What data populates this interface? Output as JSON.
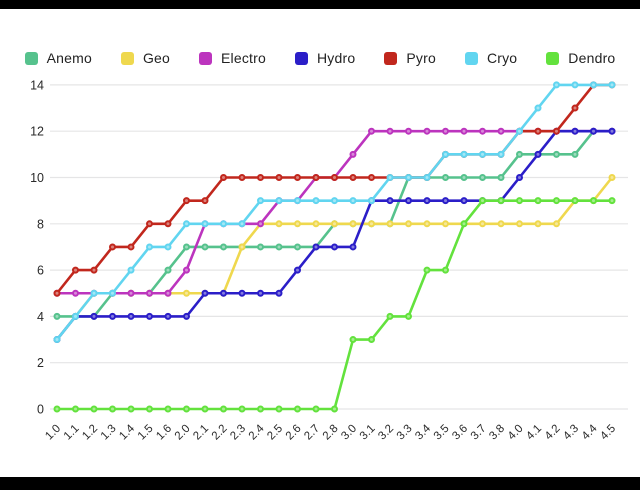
{
  "frame": {
    "letterbox_color": "#000000",
    "panel_color": "#ffffff",
    "gridline_color": "#e5e5e6"
  },
  "chart_data": {
    "type": "line",
    "title": "",
    "xlabel": "",
    "ylabel": "",
    "grid": true,
    "legend_position": "top",
    "ylim": [
      0,
      14
    ],
    "yticks": [
      0,
      2,
      4,
      6,
      8,
      10,
      12,
      14
    ],
    "x_categories": [
      "1.0",
      "1.1",
      "1.2",
      "1.3",
      "1.4",
      "1.5",
      "1.6",
      "2.0",
      "2.1",
      "2.2",
      "2.3",
      "2.4",
      "2.5",
      "2.6",
      "2.7",
      "2.8",
      "3.0",
      "3.1",
      "3.2",
      "3.3",
      "3.4",
      "3.5",
      "3.6",
      "3.7",
      "3.8",
      "4.0",
      "4.1",
      "4.2",
      "4.3",
      "4.4",
      "4.5"
    ],
    "series": [
      {
        "name": "Anemo",
        "color": "#56C28D",
        "values": [
          4,
          4,
          4,
          5,
          5,
          5,
          6,
          7,
          7,
          7,
          7,
          7,
          7,
          7,
          7,
          8,
          8,
          8,
          8,
          10,
          10,
          10,
          10,
          10,
          10,
          11,
          11,
          11,
          11,
          12,
          12
        ]
      },
      {
        "name": "Geo",
        "color": "#EFD84E",
        "values": [
          3,
          4,
          5,
          5,
          5,
          5,
          5,
          5,
          5,
          5,
          7,
          8,
          8,
          8,
          8,
          8,
          8,
          8,
          8,
          8,
          8,
          8,
          8,
          8,
          8,
          8,
          8,
          8,
          9,
          9,
          10
        ]
      },
      {
        "name": "Electro",
        "color": "#BC34BE",
        "values": [
          5,
          5,
          5,
          5,
          5,
          5,
          5,
          6,
          8,
          8,
          8,
          8,
          9,
          9,
          10,
          10,
          11,
          12,
          12,
          12,
          12,
          12,
          12,
          12,
          12,
          12,
          12,
          12,
          12,
          12,
          12
        ]
      },
      {
        "name": "Hydro",
        "color": "#2B1EC8",
        "values": [
          3,
          4,
          4,
          4,
          4,
          4,
          4,
          4,
          5,
          5,
          5,
          5,
          5,
          6,
          7,
          7,
          7,
          9,
          9,
          9,
          9,
          9,
          9,
          9,
          9,
          10,
          11,
          12,
          12,
          12,
          12
        ]
      },
      {
        "name": "Pyro",
        "color": "#C1271D",
        "values": [
          5,
          6,
          6,
          7,
          7,
          8,
          8,
          9,
          9,
          10,
          10,
          10,
          10,
          10,
          10,
          10,
          10,
          10,
          10,
          10,
          10,
          11,
          11,
          11,
          11,
          12,
          12,
          12,
          13,
          14,
          14
        ]
      },
      {
        "name": "Cryo",
        "color": "#61D5F0",
        "values": [
          3,
          4,
          5,
          5,
          6,
          7,
          7,
          8,
          8,
          8,
          8,
          9,
          9,
          9,
          9,
          9,
          9,
          9,
          10,
          10,
          10,
          11,
          11,
          11,
          11,
          12,
          13,
          14,
          14,
          14,
          14
        ]
      },
      {
        "name": "Dendro",
        "color": "#63E23D",
        "values": [
          0,
          0,
          0,
          0,
          0,
          0,
          0,
          0,
          0,
          0,
          0,
          0,
          0,
          0,
          0,
          0,
          3,
          3,
          4,
          4,
          6,
          6,
          8,
          9,
          9,
          9,
          9,
          9,
          9,
          9,
          9
        ]
      }
    ]
  }
}
